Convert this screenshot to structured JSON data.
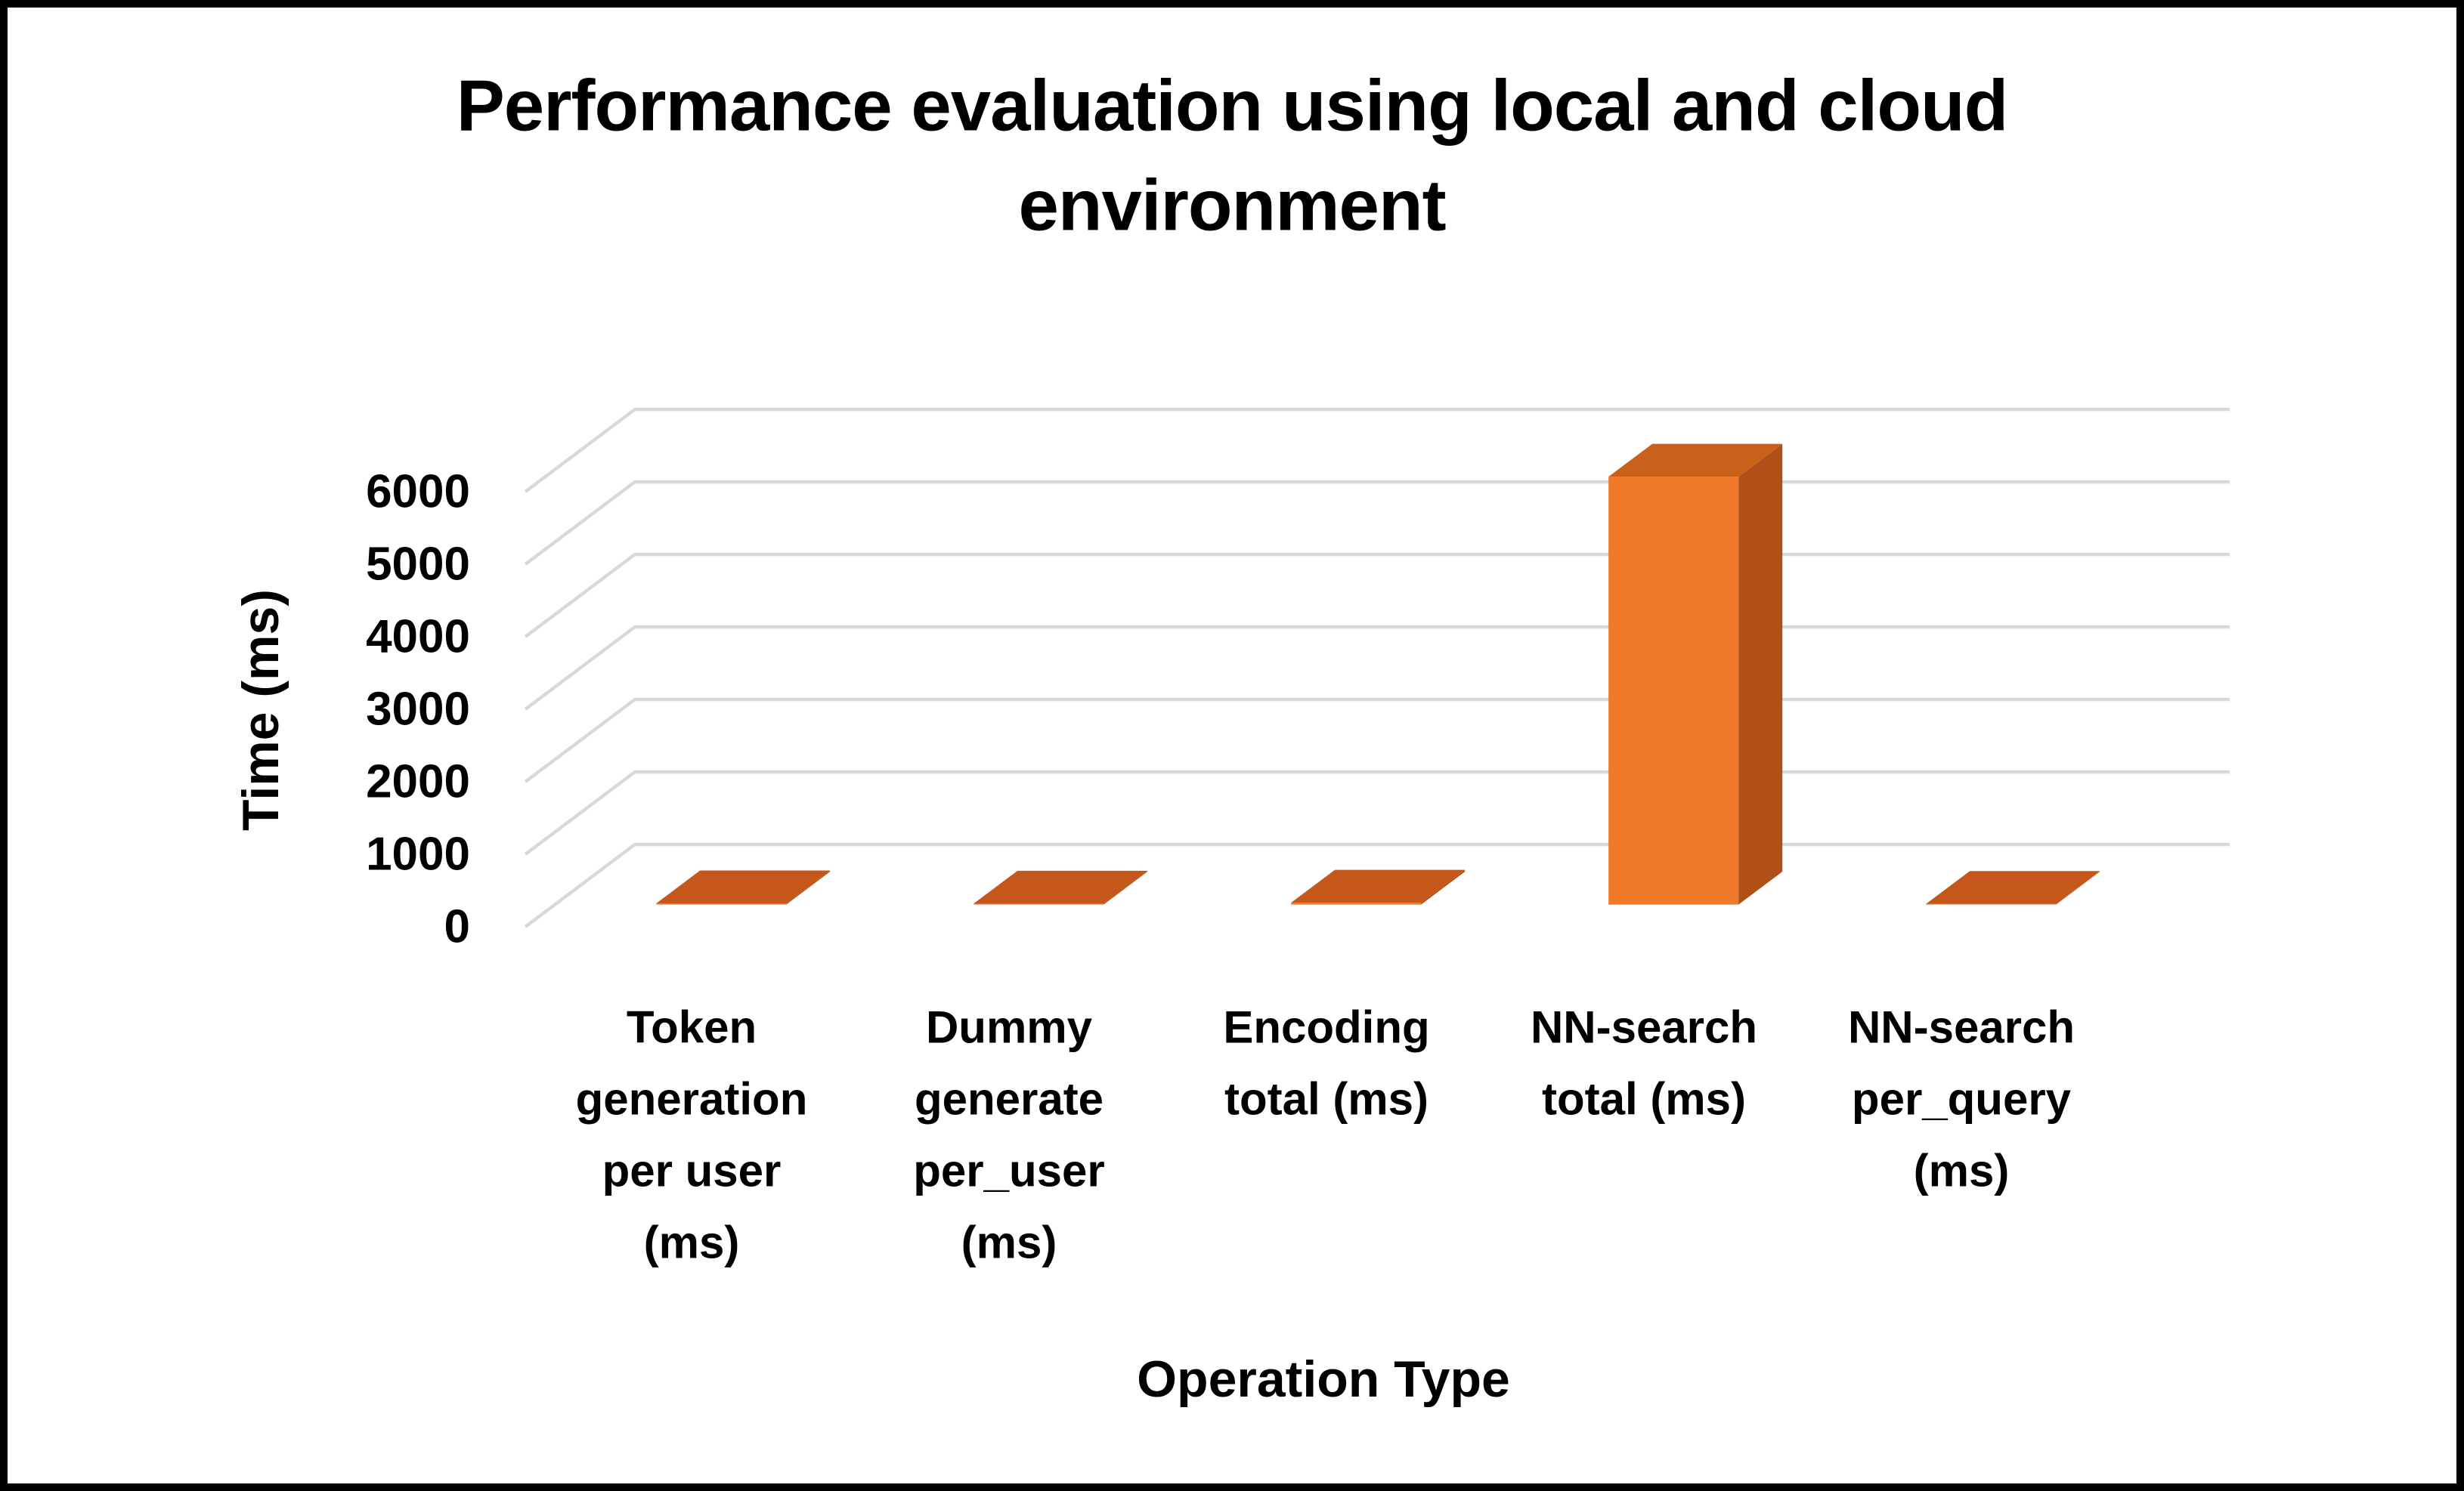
{
  "title": {
    "text": "Performance evaluation using local and cloud environment",
    "lines": [
      "Performance evaluation using local and cloud",
      "environment"
    ]
  },
  "chart_data": {
    "type": "bar",
    "projection": "3d",
    "title": "Performance evaluation using local and cloud environment",
    "xlabel": "Operation Type",
    "ylabel": "Time (ms)",
    "categories": [
      "Token generation per user (ms)",
      "Dummy generate per_user (ms)",
      "Encoding total (ms)",
      "NN-search total (ms)",
      "NN-search per_query (ms)"
    ],
    "category_label_lines": [
      [
        "Token",
        "generation",
        "per user",
        "(ms)"
      ],
      [
        "Dummy",
        "generate",
        "per_user",
        "(ms)"
      ],
      [
        "Encoding",
        "total (ms)"
      ],
      [
        "NN-search",
        "total (ms)"
      ],
      [
        "NN-search",
        "per_query",
        "(ms)"
      ]
    ],
    "values": [
      15,
      12,
      25,
      5900,
      8
    ],
    "values_note": "Bars 1, 2, 3 and 5 render as flat slabs (approximately 0 on the 0-6000 ms scale); tall bar estimated ~5900 ms from gridlines",
    "ylim": [
      0,
      6000
    ],
    "ytick_step": 1000,
    "yticks": [
      0,
      1000,
      2000,
      3000,
      4000,
      5000,
      6000
    ],
    "grid": true,
    "legend": false
  },
  "colors": {
    "bar_front": "#F0792A",
    "bar_side": "#AE5017",
    "bar_top": "#C9611A",
    "bar_flat_top": "#C6571B",
    "gridline": "#D9D9D9",
    "text": "#000000",
    "frame": "#000000",
    "background": "#FFFFFF"
  }
}
